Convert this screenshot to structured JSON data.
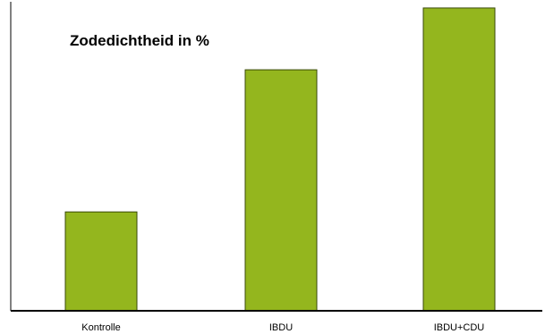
{
  "chart_data": {
    "type": "bar",
    "title": "Zodedichtheid in %",
    "categories": [
      "Kontrolle",
      "IBDU",
      "IBDU+CDU"
    ],
    "values": [
      32,
      78,
      98
    ],
    "ylim": [
      0,
      100
    ],
    "xlabel": "",
    "ylabel": "",
    "grid": false,
    "legend": "none",
    "bar_color": "#94b61e",
    "bar_edge_color": "#3a4a0a"
  }
}
